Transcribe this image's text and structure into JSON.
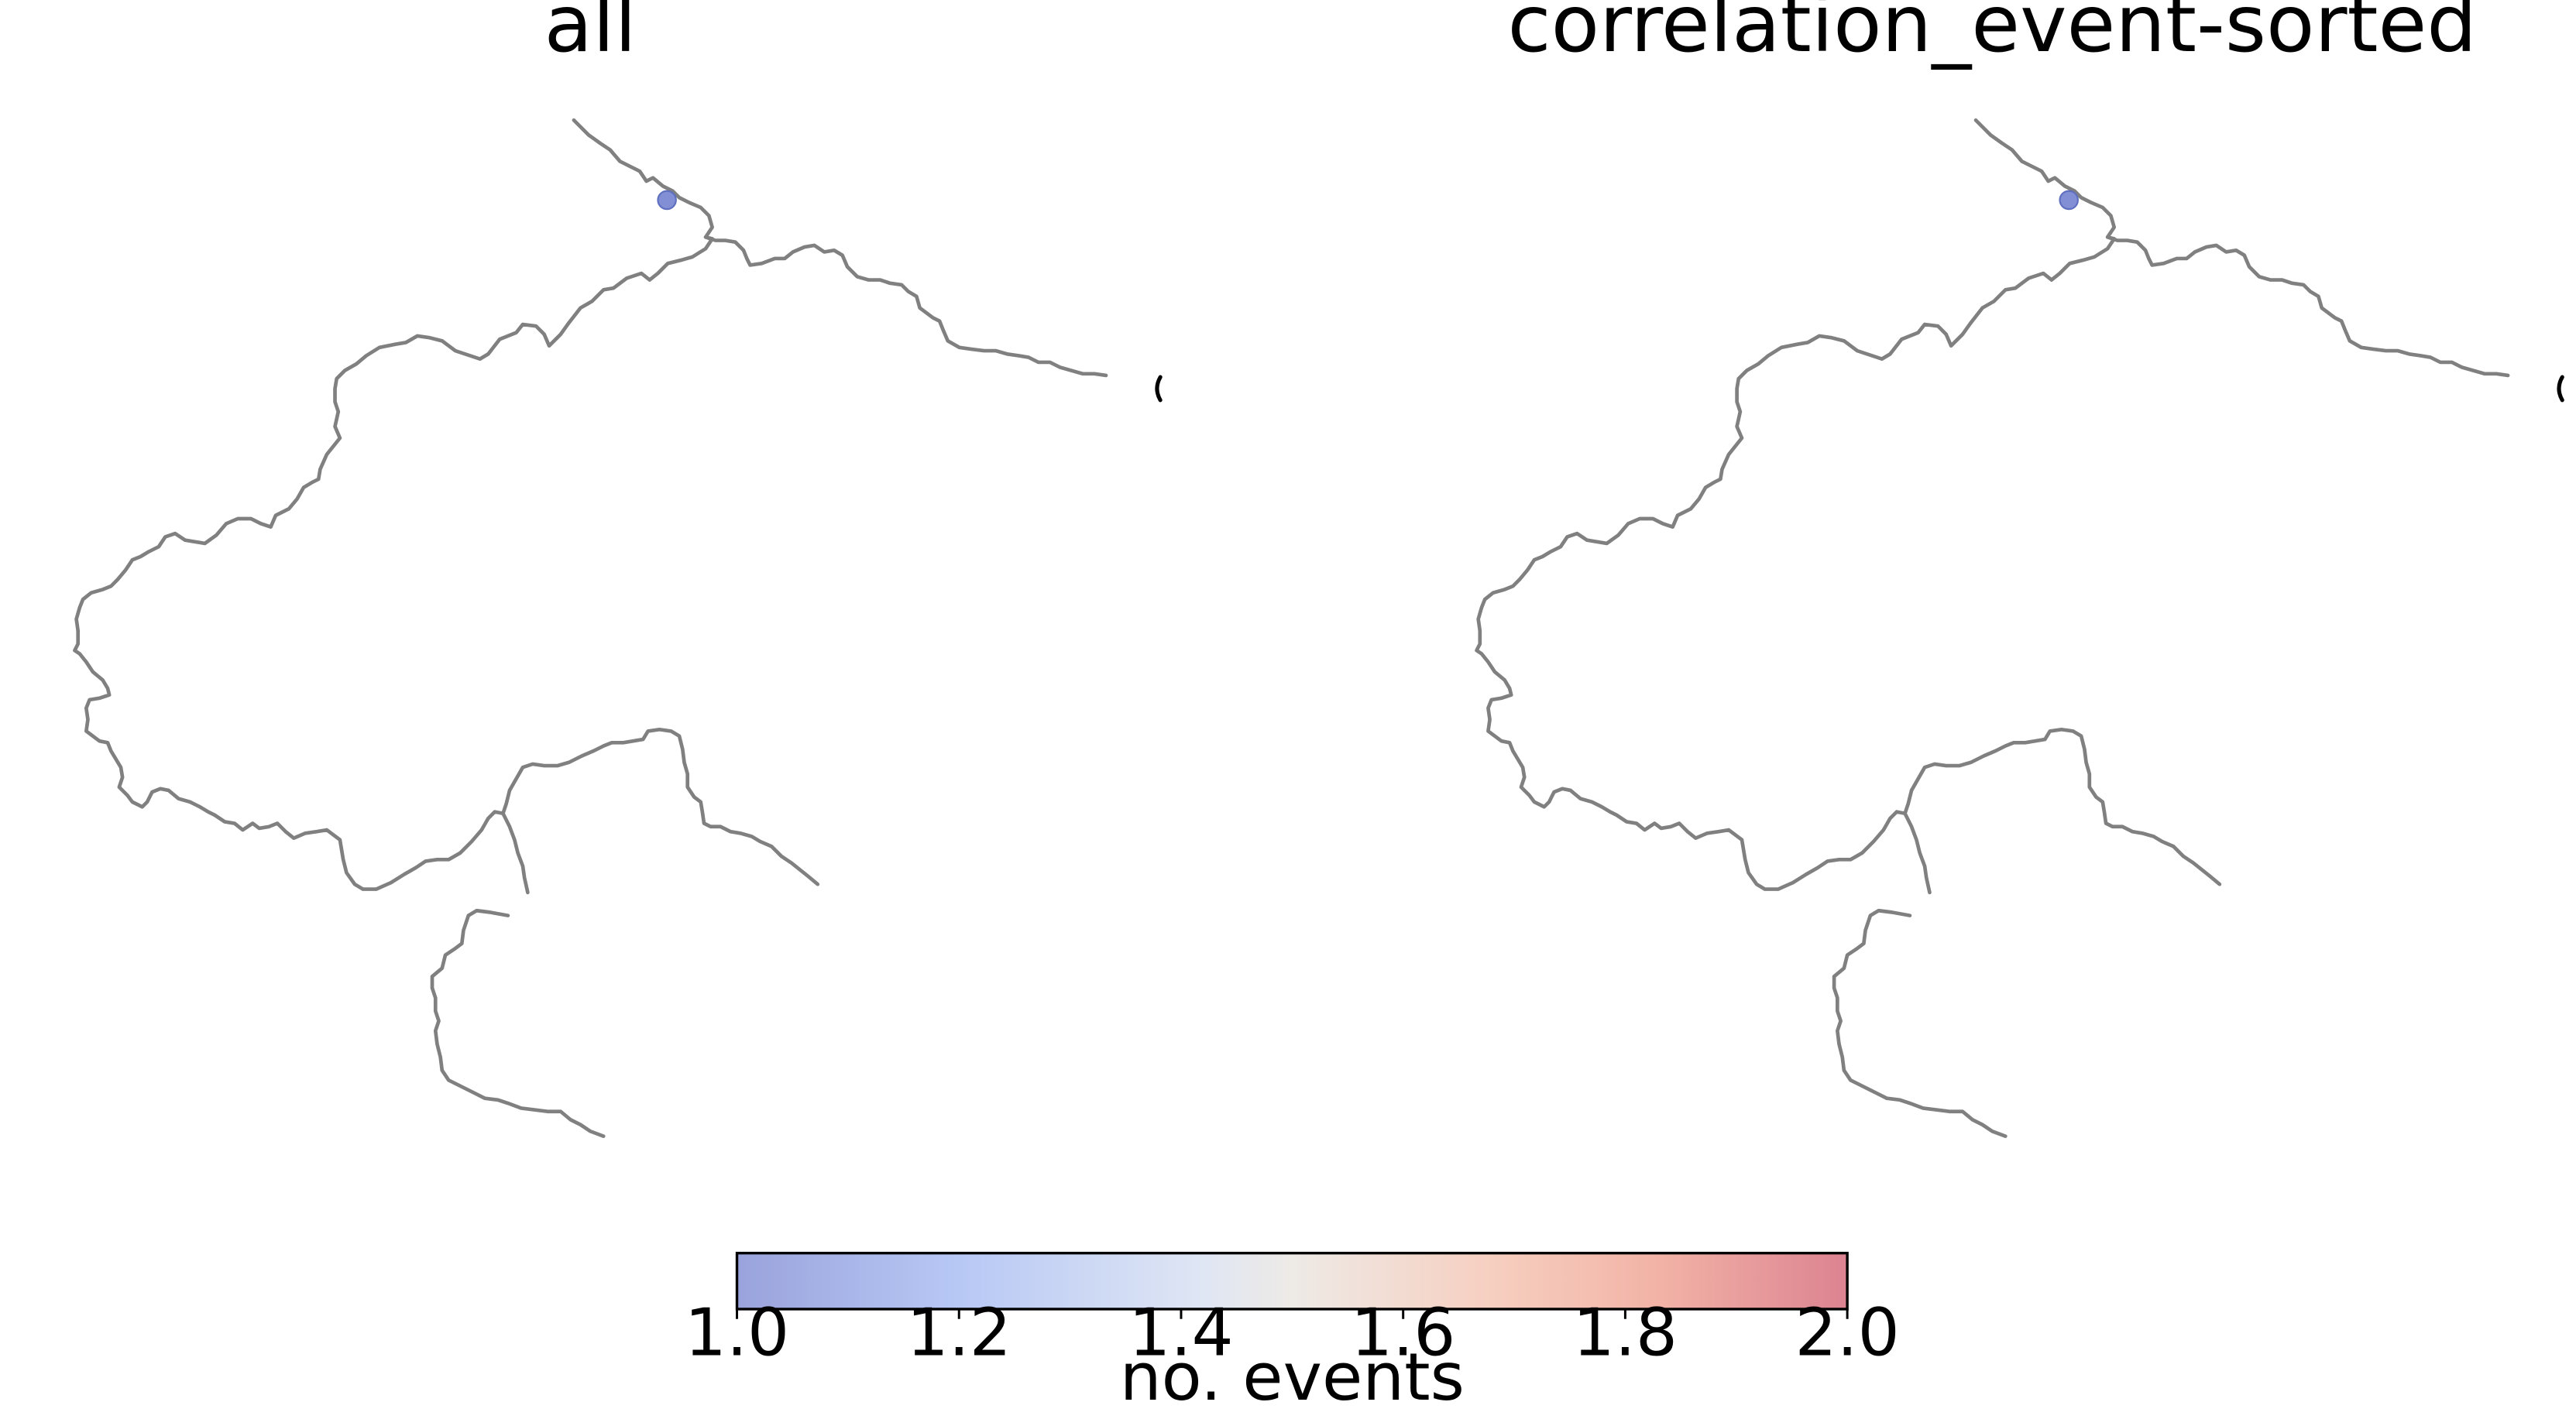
{
  "panels": [
    {
      "title": "all",
      "points": [
        {
          "value": 1.0
        }
      ]
    },
    {
      "title": "correlation_event-sorted",
      "points": [
        {
          "value": 1.0
        }
      ]
    }
  ],
  "colorbar": {
    "label": "no. events",
    "min": 1.0,
    "max": 2.0,
    "ticks": [
      "1.0",
      "1.2",
      "1.4",
      "1.6",
      "1.8",
      "2.0"
    ],
    "colormap": "coolwarm",
    "colors": [
      "#9aa3dc",
      "#b8c8f5",
      "#dfe6f4",
      "#eeeae6",
      "#f6cfc0",
      "#f2b3a6",
      "#dc8391"
    ]
  },
  "map": {
    "border_color": "#808080",
    "point_color": "#7483cf"
  }
}
